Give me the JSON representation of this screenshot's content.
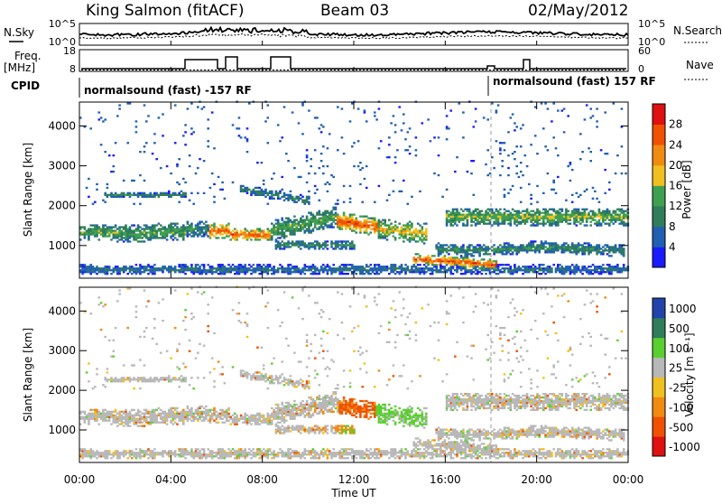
{
  "header": {
    "station": "King Salmon (fitACF)",
    "beam": "Beam 03",
    "date": "02/May/2012"
  },
  "side_labels": {
    "nsky": "N.Sky",
    "nsearch": "N.Search",
    "freq": "Freq.",
    "freq_unit": "[MHz]",
    "nave": "Nave",
    "cpid": "CPID"
  },
  "noise_axis": {
    "left_ticks": [
      "10^5",
      "10^0"
    ],
    "right_ticks": [
      "10^5",
      "10^0"
    ]
  },
  "freq_axis": {
    "left_ticks": [
      "18",
      "8"
    ],
    "right_ticks": [
      "60",
      "0"
    ]
  },
  "cpid": [
    {
      "label": "normalsound (fast) -157 RF",
      "start_hour": 0
    },
    {
      "label": "normalsound (fast) 157 RF",
      "start_hour": 18
    }
  ],
  "x_axis": {
    "title": "Time UT",
    "ticks": [
      "00:00",
      "04:00",
      "08:00",
      "12:00",
      "16:00",
      "20:00",
      "00:00"
    ],
    "range_hours": [
      0,
      24
    ]
  },
  "y_axis": {
    "title": "Slant Range [km]",
    "ticks": [
      "1000",
      "2000",
      "3000",
      "4000"
    ],
    "range_km": [
      180,
      4600
    ]
  },
  "power_scale": {
    "title": "Power [dB]",
    "ticks": [
      "4",
      "8",
      "12",
      "16",
      "20",
      "24",
      "28"
    ],
    "colors": [
      "#1a1aff",
      "#2060b0",
      "#2f7d5a",
      "#3fa050",
      "#f0c020",
      "#f08a10",
      "#f05000",
      "#e01010"
    ]
  },
  "velocity_scale": {
    "title": "Velocity [m s⁻¹]",
    "ticks": [
      "1000",
      "500",
      "100",
      "25",
      "-25",
      "-100",
      "-500",
      "-1000"
    ],
    "colors": [
      "#2244aa",
      "#2f7d5a",
      "#5ad030",
      "#b8b8b8",
      "#f0c020",
      "#f08a10",
      "#f05000",
      "#e01010"
    ]
  },
  "chart_data": {
    "type": "heatmap",
    "panels": [
      "power",
      "velocity"
    ],
    "description_regions": [
      {
        "t0": 0.0,
        "t1": 4.5,
        "r0": 1000,
        "r1": 1450,
        "power": "medium",
        "velocity": "25"
      },
      {
        "t0": 5.7,
        "t1": 6.4,
        "r0": 1150,
        "r1": 1500,
        "power": "high",
        "velocity": "25"
      },
      {
        "t0": 6.8,
        "t1": 8.2,
        "r0": 1100,
        "r1": 1350,
        "power": "high",
        "velocity": "25"
      },
      {
        "t0": 11.3,
        "t1": 12.9,
        "r0": 1350,
        "r1": 1800,
        "power": "high",
        "velocity": "-500"
      },
      {
        "t0": 12.9,
        "t1": 15.0,
        "r0": 1050,
        "r1": 1650,
        "power": "medium",
        "velocity": "100"
      },
      {
        "t0": 15.0,
        "t1": 18.0,
        "r0": 400,
        "r1": 650,
        "power": "high",
        "velocity": "25"
      },
      {
        "t0": 18.0,
        "t1": 23.8,
        "r0": 1550,
        "r1": 1900,
        "power": "medium",
        "velocity": "25"
      }
    ]
  }
}
